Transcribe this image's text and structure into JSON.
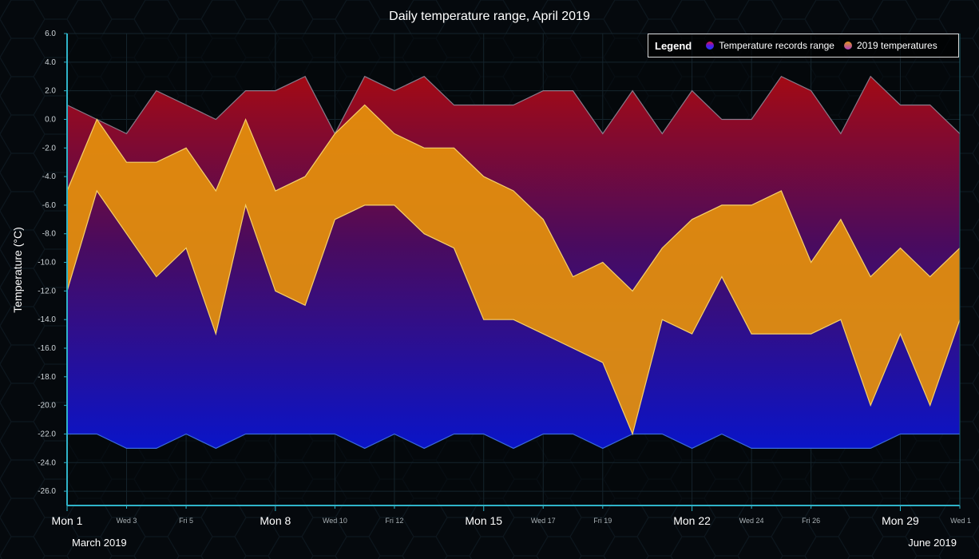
{
  "chart_data": {
    "type": "area",
    "title": "Daily temperature range, April 2019",
    "ylabel": "Temperature (°C)",
    "xlabel": "",
    "ylim": [
      -27,
      6
    ],
    "yticks": [
      6,
      4,
      2,
      0,
      -2,
      -4,
      -6,
      -8,
      -10,
      -12,
      -14,
      -16,
      -18,
      -20,
      -22,
      -24,
      -26
    ],
    "ytick_labels": [
      "6.0",
      "4.0",
      "2.0",
      "0.0",
      "-2.0",
      "-4.0",
      "-6.0",
      "-8.0",
      "-10.0",
      "-12.0",
      "-14.0",
      "-16.0",
      "-18.0",
      "-20.0",
      "-22.0",
      "-24.0",
      "-26.0"
    ],
    "x_days": [
      1,
      2,
      3,
      4,
      5,
      6,
      7,
      8,
      9,
      10,
      11,
      12,
      13,
      14,
      15,
      16,
      17,
      18,
      19,
      20,
      21,
      22,
      23,
      24,
      25,
      26,
      27,
      28,
      29,
      30,
      31
    ],
    "xticks": [
      {
        "day": 1,
        "label": "Mon 1",
        "major": true
      },
      {
        "day": 3,
        "label": "Wed 3",
        "major": false
      },
      {
        "day": 5,
        "label": "Fri 5",
        "major": false
      },
      {
        "day": 8,
        "label": "Mon 8",
        "major": true
      },
      {
        "day": 10,
        "label": "Wed 10",
        "major": false
      },
      {
        "day": 12,
        "label": "Fri 12",
        "major": false
      },
      {
        "day": 15,
        "label": "Mon 15",
        "major": true
      },
      {
        "day": 17,
        "label": "Wed 17",
        "major": false
      },
      {
        "day": 19,
        "label": "Fri 19",
        "major": false
      },
      {
        "day": 22,
        "label": "Mon 22",
        "major": true
      },
      {
        "day": 24,
        "label": "Wed 24",
        "major": false
      },
      {
        "day": 26,
        "label": "Fri 26",
        "major": false
      },
      {
        "day": 29,
        "label": "Mon 29",
        "major": true
      },
      {
        "day": 31,
        "label": "Wed 1",
        "major": false
      }
    ],
    "date_labels": {
      "left": "March 2019",
      "right": "June 2019"
    },
    "legend": {
      "title": "Legend",
      "position": "top-right"
    },
    "series": [
      {
        "name": "Temperature records range",
        "kind": "range",
        "high": [
          1,
          0,
          -1,
          2,
          1,
          0,
          2,
          2,
          3,
          -1,
          3,
          2,
          3,
          1,
          1,
          1,
          2,
          2,
          -1,
          2,
          -1,
          2,
          0,
          0,
          3,
          2,
          -1,
          3,
          1,
          1,
          -1
        ],
        "low": [
          -22,
          -22,
          -23,
          -23,
          -22,
          -23,
          -22,
          -22,
          -22,
          -22,
          -23,
          -22,
          -23,
          -22,
          -22,
          -23,
          -22,
          -22,
          -23,
          -22,
          -22,
          -23,
          -22,
          -23,
          -23,
          -23,
          -23,
          -23,
          -22,
          -22,
          -22
        ],
        "colors": {
          "top": "#a30a14",
          "mid": "#4a0b5e",
          "bottom": "#0a14c8"
        }
      },
      {
        "name": "2019 temperatures",
        "kind": "range",
        "high": [
          -5,
          0,
          -3,
          -3,
          -2,
          -5,
          0,
          -5,
          -4,
          -1,
          1,
          -1,
          -2,
          -2,
          -4,
          -5,
          -7,
          -11,
          -10,
          -12,
          -9,
          -7,
          -6,
          -6,
          -5,
          -10,
          -7,
          -11,
          -9,
          -11,
          -9
        ],
        "low": [
          -12,
          -5,
          -8,
          -11,
          -9,
          -15,
          -6,
          -12,
          -13,
          -7,
          -6,
          -6,
          -8,
          -9,
          -14,
          -14,
          -15,
          -16,
          -17,
          -22,
          -14,
          -15,
          -11,
          -15,
          -15,
          -15,
          -14,
          -20,
          -15,
          -20,
          -14
        ],
        "colors": {
          "fill": "#e5900c",
          "stroke": "#f5d06a"
        }
      }
    ],
    "grid": true
  }
}
